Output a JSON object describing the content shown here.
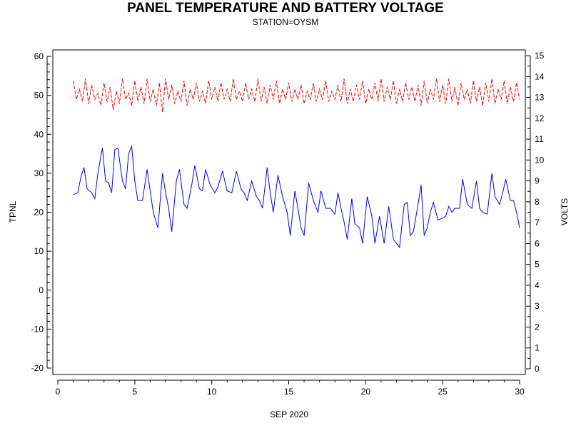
{
  "chart_data": {
    "type": "line",
    "title": "PANEL TEMPERATURE AND BATTERY VOLTAGE",
    "subtitle": "STATION=OYSM",
    "xlabel": "SEP 2020",
    "ylabel_left": "TPNL",
    "ylabel_right": "VOLTS",
    "xlim": [
      0,
      30.2
    ],
    "ylim_left": [
      -22,
      62
    ],
    "ylim_right": [
      -0.3,
      15.4
    ],
    "x_ticks": [
      0,
      5,
      10,
      15,
      20,
      25,
      30
    ],
    "y_left_ticks": [
      -20,
      -10,
      0,
      10,
      20,
      30,
      40,
      50,
      60
    ],
    "y_right_ticks": [
      0,
      1,
      2,
      3,
      4,
      5,
      6,
      7,
      8,
      9,
      10,
      11,
      12,
      13,
      14,
      15
    ],
    "grid": false,
    "legend": "none",
    "series": [
      {
        "axis": "left",
        "color": "#0000ff",
        "style": "solid",
        "points": [
          [
            1.0,
            24.5
          ],
          [
            1.3,
            25.0
          ],
          [
            1.5,
            29.0
          ],
          [
            1.7,
            31.5
          ],
          [
            1.9,
            26.0
          ],
          [
            2.2,
            25.0
          ],
          [
            2.4,
            23.5
          ],
          [
            2.6,
            30.0
          ],
          [
            2.9,
            36.5
          ],
          [
            3.1,
            28.0
          ],
          [
            3.3,
            27.5
          ],
          [
            3.5,
            25.0
          ],
          [
            3.7,
            36.0
          ],
          [
            3.9,
            36.5
          ],
          [
            4.2,
            28.0
          ],
          [
            4.4,
            26.0
          ],
          [
            4.6,
            35.0
          ],
          [
            4.8,
            37.0
          ],
          [
            5.0,
            28.0
          ],
          [
            5.2,
            23.0
          ],
          [
            5.5,
            23.0
          ],
          [
            5.8,
            31.0
          ],
          [
            6.2,
            20.0
          ],
          [
            6.5,
            16.0
          ],
          [
            6.8,
            30.0
          ],
          [
            7.0,
            25.0
          ],
          [
            7.2,
            21.0
          ],
          [
            7.4,
            15.0
          ],
          [
            7.7,
            28.0
          ],
          [
            7.9,
            31.0
          ],
          [
            8.2,
            22.0
          ],
          [
            8.4,
            21.0
          ],
          [
            8.7,
            27.0
          ],
          [
            8.9,
            32.0
          ],
          [
            9.2,
            26.0
          ],
          [
            9.4,
            25.5
          ],
          [
            9.6,
            31.0
          ],
          [
            9.9,
            27.0
          ],
          [
            10.2,
            25.0
          ],
          [
            10.4,
            26.5
          ],
          [
            10.7,
            30.5
          ],
          [
            11.0,
            25.5
          ],
          [
            11.3,
            25.0
          ],
          [
            11.6,
            30.5
          ],
          [
            11.9,
            26.0
          ],
          [
            12.1,
            25.0
          ],
          [
            12.3,
            23.0
          ],
          [
            12.6,
            28.0
          ],
          [
            12.9,
            24.0
          ],
          [
            13.1,
            23.0
          ],
          [
            13.3,
            21.0
          ],
          [
            13.6,
            31.5
          ],
          [
            13.8,
            25.0
          ],
          [
            14.0,
            20.0
          ],
          [
            14.3,
            29.5
          ],
          [
            14.6,
            24.0
          ],
          [
            14.9,
            20.0
          ],
          [
            15.1,
            14.0
          ],
          [
            15.4,
            25.5
          ],
          [
            15.6,
            21.0
          ],
          [
            15.8,
            16.0
          ],
          [
            16.0,
            14.0
          ],
          [
            16.3,
            27.5
          ],
          [
            16.6,
            23.0
          ],
          [
            16.9,
            20.0
          ],
          [
            17.1,
            25.5
          ],
          [
            17.4,
            21.0
          ],
          [
            17.7,
            21.0
          ],
          [
            18.0,
            19.5
          ],
          [
            18.2,
            25.0
          ],
          [
            18.4,
            21.0
          ],
          [
            18.6,
            17.5
          ],
          [
            18.8,
            13.0
          ],
          [
            19.1,
            23.5
          ],
          [
            19.3,
            17.0
          ],
          [
            19.6,
            16.0
          ],
          [
            19.8,
            12.0
          ],
          [
            20.1,
            24.0
          ],
          [
            20.4,
            19.0
          ],
          [
            20.6,
            12.0
          ],
          [
            20.9,
            19.0
          ],
          [
            21.2,
            12.0
          ],
          [
            21.5,
            21.5
          ],
          [
            21.8,
            13.0
          ],
          [
            22.2,
            11.0
          ],
          [
            22.5,
            22.0
          ],
          [
            22.7,
            22.5
          ],
          [
            22.9,
            14.0
          ],
          [
            23.1,
            15.0
          ],
          [
            23.4,
            22.0
          ],
          [
            23.6,
            27.0
          ],
          [
            23.8,
            14.0
          ],
          [
            24.0,
            16.0
          ],
          [
            24.2,
            20.0
          ],
          [
            24.4,
            22.5
          ],
          [
            24.7,
            18.0
          ],
          [
            25.0,
            18.5
          ],
          [
            25.2,
            19.0
          ],
          [
            25.4,
            21.5
          ],
          [
            25.6,
            20.0
          ],
          [
            25.8,
            21.0
          ],
          [
            26.1,
            21.0
          ],
          [
            26.3,
            28.5
          ],
          [
            26.6,
            22.0
          ],
          [
            26.9,
            21.0
          ],
          [
            27.2,
            28.0
          ],
          [
            27.4,
            21.0
          ],
          [
            27.6,
            20.0
          ],
          [
            27.9,
            19.5
          ],
          [
            28.2,
            30.0
          ],
          [
            28.4,
            24.0
          ],
          [
            28.7,
            22.0
          ],
          [
            28.9,
            25.0
          ],
          [
            29.1,
            28.5
          ],
          [
            29.4,
            23.0
          ],
          [
            29.6,
            23.0
          ],
          [
            29.8,
            20.0
          ],
          [
            30.0,
            16.0
          ]
        ]
      },
      {
        "axis": "right",
        "color": "#ff0000",
        "style": "dashed",
        "description_range": [
          12.2,
          14.3
        ],
        "points": [
          [
            1.0,
            13.8
          ],
          [
            1.2,
            12.9
          ],
          [
            1.4,
            13.4
          ],
          [
            1.6,
            12.8
          ],
          [
            1.8,
            13.9
          ],
          [
            2.0,
            12.7
          ],
          [
            2.2,
            13.6
          ],
          [
            2.4,
            12.9
          ],
          [
            2.6,
            13.2
          ],
          [
            2.8,
            12.6
          ],
          [
            3.0,
            13.7
          ],
          [
            3.2,
            12.8
          ],
          [
            3.4,
            13.5
          ],
          [
            3.6,
            12.4
          ],
          [
            3.8,
            13.3
          ],
          [
            4.0,
            12.7
          ],
          [
            4.2,
            13.9
          ],
          [
            4.4,
            12.9
          ],
          [
            4.6,
            13.2
          ],
          [
            4.8,
            12.6
          ],
          [
            5.0,
            13.8
          ],
          [
            5.2,
            12.8
          ],
          [
            5.4,
            13.5
          ],
          [
            5.6,
            12.7
          ],
          [
            5.8,
            13.9
          ],
          [
            6.0,
            12.8
          ],
          [
            6.2,
            13.4
          ],
          [
            6.4,
            12.6
          ],
          [
            6.6,
            13.7
          ],
          [
            6.8,
            12.3
          ],
          [
            7.0,
            13.9
          ],
          [
            7.2,
            12.9
          ],
          [
            7.4,
            13.6
          ],
          [
            7.6,
            12.7
          ],
          [
            7.8,
            13.3
          ],
          [
            8.0,
            12.8
          ],
          [
            8.2,
            13.8
          ],
          [
            8.4,
            12.6
          ],
          [
            8.6,
            13.4
          ],
          [
            8.8,
            12.9
          ],
          [
            9.0,
            13.7
          ],
          [
            9.2,
            12.8
          ],
          [
            9.4,
            13.3
          ],
          [
            9.6,
            12.7
          ],
          [
            9.8,
            13.8
          ],
          [
            10.0,
            12.9
          ],
          [
            10.2,
            13.5
          ],
          [
            10.4,
            12.8
          ],
          [
            10.6,
            13.7
          ],
          [
            10.8,
            12.9
          ],
          [
            11.0,
            13.4
          ],
          [
            11.2,
            12.8
          ],
          [
            11.4,
            13.9
          ],
          [
            11.6,
            12.9
          ],
          [
            11.8,
            13.3
          ],
          [
            12.0,
            12.8
          ],
          [
            12.2,
            13.7
          ],
          [
            12.4,
            12.9
          ],
          [
            12.6,
            13.4
          ],
          [
            12.8,
            12.8
          ],
          [
            13.0,
            13.9
          ],
          [
            13.2,
            12.8
          ],
          [
            13.4,
            13.5
          ],
          [
            13.6,
            12.7
          ],
          [
            13.8,
            13.6
          ],
          [
            14.0,
            12.9
          ],
          [
            14.2,
            13.8
          ],
          [
            14.4,
            12.7
          ],
          [
            14.6,
            13.4
          ],
          [
            14.8,
            12.9
          ],
          [
            15.0,
            13.7
          ],
          [
            15.2,
            12.8
          ],
          [
            15.4,
            13.4
          ],
          [
            15.6,
            12.9
          ],
          [
            15.8,
            13.6
          ],
          [
            16.0,
            12.7
          ],
          [
            16.2,
            13.3
          ],
          [
            16.4,
            12.9
          ],
          [
            16.6,
            13.7
          ],
          [
            16.8,
            12.8
          ],
          [
            17.0,
            13.4
          ],
          [
            17.2,
            12.9
          ],
          [
            17.4,
            13.8
          ],
          [
            17.6,
            12.8
          ],
          [
            17.8,
            13.3
          ],
          [
            18.0,
            12.9
          ],
          [
            18.2,
            13.6
          ],
          [
            18.4,
            12.8
          ],
          [
            18.6,
            13.9
          ],
          [
            18.8,
            12.7
          ],
          [
            19.0,
            13.4
          ],
          [
            19.2,
            12.8
          ],
          [
            19.4,
            13.6
          ],
          [
            19.6,
            12.9
          ],
          [
            19.8,
            13.8
          ],
          [
            20.0,
            12.7
          ],
          [
            20.2,
            13.4
          ],
          [
            20.4,
            12.9
          ],
          [
            20.6,
            13.7
          ],
          [
            20.8,
            12.8
          ],
          [
            21.0,
            13.9
          ],
          [
            21.2,
            12.8
          ],
          [
            21.4,
            13.5
          ],
          [
            21.6,
            12.9
          ],
          [
            21.8,
            13.8
          ],
          [
            22.0,
            12.7
          ],
          [
            22.2,
            13.4
          ],
          [
            22.4,
            12.8
          ],
          [
            22.6,
            13.7
          ],
          [
            22.8,
            12.9
          ],
          [
            23.0,
            13.5
          ],
          [
            23.2,
            12.8
          ],
          [
            23.4,
            13.6
          ],
          [
            23.6,
            12.6
          ],
          [
            23.8,
            13.8
          ],
          [
            24.0,
            12.7
          ],
          [
            24.2,
            13.4
          ],
          [
            24.4,
            12.9
          ],
          [
            24.6,
            13.9
          ],
          [
            24.8,
            12.8
          ],
          [
            25.0,
            13.6
          ],
          [
            25.2,
            12.7
          ],
          [
            25.4,
            13.9
          ],
          [
            25.6,
            12.8
          ],
          [
            25.8,
            13.5
          ],
          [
            26.0,
            12.6
          ],
          [
            26.2,
            13.7
          ],
          [
            26.4,
            12.9
          ],
          [
            26.6,
            13.4
          ],
          [
            26.8,
            12.7
          ],
          [
            27.0,
            13.8
          ],
          [
            27.2,
            12.8
          ],
          [
            27.4,
            13.5
          ],
          [
            27.6,
            12.6
          ],
          [
            27.8,
            13.7
          ],
          [
            28.0,
            12.8
          ],
          [
            28.2,
            13.9
          ],
          [
            28.4,
            12.7
          ],
          [
            28.6,
            13.4
          ],
          [
            28.8,
            12.9
          ],
          [
            29.0,
            13.8
          ],
          [
            29.2,
            12.7
          ],
          [
            29.4,
            13.5
          ],
          [
            29.6,
            12.8
          ],
          [
            29.8,
            13.7
          ],
          [
            30.0,
            12.9
          ]
        ]
      }
    ]
  }
}
